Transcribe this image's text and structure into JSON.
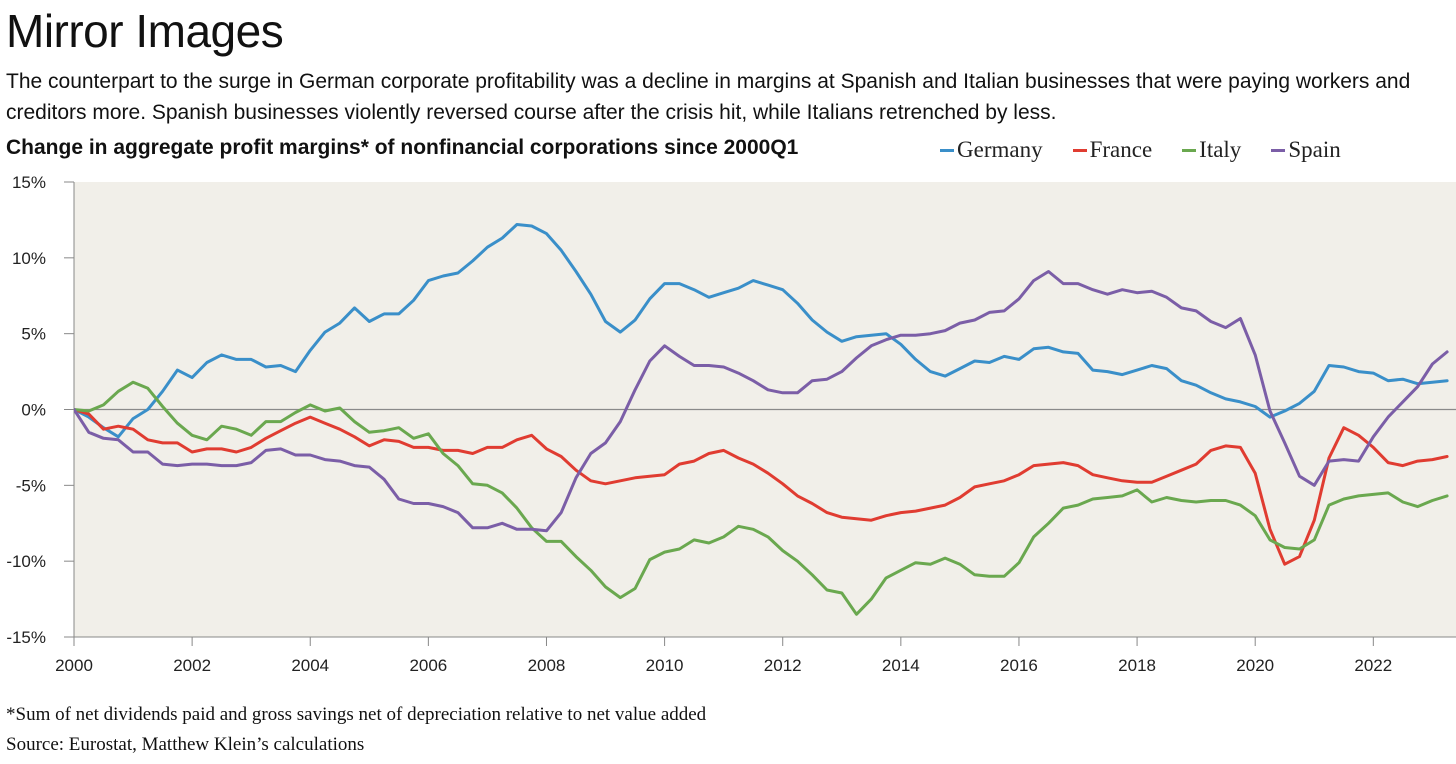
{
  "title": "Mirror Images",
  "subtitle": "The counterpart to the surge in German corporate profitability was a decline in margins at Spanish and Italian businesses that were paying workers and creditors more. Spanish businesses violently reversed course after the crisis hit, while Italians retrenched by less.",
  "footnote": "*Sum of net dividends paid and gross savings net of depreciation relative to net value added",
  "source": "Source: Eurostat, Matthew Klein’s calculations",
  "chart_data": {
    "type": "line",
    "title": "Change in aggregate profit margins* of nonfinancial corporations since 2000Q1",
    "xlabel": "",
    "ylabel": "",
    "xlim": [
      2000,
      2023.4
    ],
    "ylim": [
      -15,
      15
    ],
    "x_ticks": [
      2000,
      2002,
      2004,
      2006,
      2008,
      2010,
      2012,
      2014,
      2016,
      2018,
      2020,
      2022
    ],
    "y_ticks": [
      -15,
      -10,
      -5,
      0,
      5,
      10,
      15
    ],
    "y_tick_labels": [
      "-15%",
      "-10%",
      "-5%",
      "0%",
      "5%",
      "10%",
      "15%"
    ],
    "plot_background": "#f1efe9",
    "grid": false,
    "legend_position": "top-right",
    "series": [
      {
        "name": "Germany",
        "color": "#3a8fc9",
        "x": [
          2000.0,
          2000.25,
          2000.5,
          2000.75,
          2001.0,
          2001.25,
          2001.5,
          2001.75,
          2002.0,
          2002.25,
          2002.5,
          2002.75,
          2003.0,
          2003.25,
          2003.5,
          2003.75,
          2004.0,
          2004.25,
          2004.5,
          2004.75,
          2005.0,
          2005.25,
          2005.5,
          2005.75,
          2006.0,
          2006.25,
          2006.5,
          2006.75,
          2007.0,
          2007.25,
          2007.5,
          2007.75,
          2008.0,
          2008.25,
          2008.5,
          2008.75,
          2009.0,
          2009.25,
          2009.5,
          2009.75,
          2010.0,
          2010.25,
          2010.5,
          2010.75,
          2011.0,
          2011.25,
          2011.5,
          2011.75,
          2012.0,
          2012.25,
          2012.5,
          2012.75,
          2013.0,
          2013.25,
          2013.5,
          2013.75,
          2014.0,
          2014.25,
          2014.5,
          2014.75,
          2015.0,
          2015.25,
          2015.5,
          2015.75,
          2016.0,
          2016.25,
          2016.5,
          2016.75,
          2017.0,
          2017.25,
          2017.5,
          2017.75,
          2018.0,
          2018.25,
          2018.5,
          2018.75,
          2019.0,
          2019.25,
          2019.5,
          2019.75,
          2020.0,
          2020.25,
          2020.5,
          2020.75,
          2021.0,
          2021.25,
          2021.5,
          2021.75,
          2022.0,
          2022.25,
          2022.5,
          2022.75,
          2023.0,
          2023.25
        ],
        "values": [
          0.0,
          -0.5,
          -1.2,
          -1.8,
          -0.6,
          0.0,
          1.2,
          2.6,
          2.1,
          3.1,
          3.6,
          3.3,
          3.3,
          2.8,
          2.9,
          2.5,
          3.9,
          5.1,
          5.7,
          6.7,
          5.8,
          6.3,
          6.3,
          7.2,
          8.5,
          8.8,
          9.0,
          9.8,
          10.7,
          11.3,
          12.2,
          12.1,
          11.6,
          10.5,
          9.1,
          7.6,
          5.8,
          5.1,
          5.9,
          7.3,
          8.3,
          8.3,
          7.9,
          7.4,
          7.7,
          8.0,
          8.5,
          8.2,
          7.9,
          7.0,
          5.9,
          5.1,
          4.5,
          4.8,
          4.9,
          5.0,
          4.3,
          3.3,
          2.5,
          2.2,
          2.7,
          3.2,
          3.1,
          3.5,
          3.3,
          4.0,
          4.1,
          3.8,
          3.7,
          2.6,
          2.5,
          2.3,
          2.6,
          2.9,
          2.7,
          1.9,
          1.6,
          1.1,
          0.7,
          0.5,
          0.2,
          -0.5,
          -0.1,
          0.4,
          1.2,
          2.9,
          2.8,
          2.5,
          2.4,
          1.9,
          2.0,
          1.7,
          1.8,
          1.9
        ]
      },
      {
        "name": "France",
        "color": "#e03c31",
        "x": [
          2000.0,
          2000.25,
          2000.5,
          2000.75,
          2001.0,
          2001.25,
          2001.5,
          2001.75,
          2002.0,
          2002.25,
          2002.5,
          2002.75,
          2003.0,
          2003.25,
          2003.5,
          2003.75,
          2004.0,
          2004.25,
          2004.5,
          2004.75,
          2005.0,
          2005.25,
          2005.5,
          2005.75,
          2006.0,
          2006.25,
          2006.5,
          2006.75,
          2007.0,
          2007.25,
          2007.5,
          2007.75,
          2008.0,
          2008.25,
          2008.5,
          2008.75,
          2009.0,
          2009.25,
          2009.5,
          2009.75,
          2010.0,
          2010.25,
          2010.5,
          2010.75,
          2011.0,
          2011.25,
          2011.5,
          2011.75,
          2012.0,
          2012.25,
          2012.5,
          2012.75,
          2013.0,
          2013.25,
          2013.5,
          2013.75,
          2014.0,
          2014.25,
          2014.5,
          2014.75,
          2015.0,
          2015.25,
          2015.5,
          2015.75,
          2016.0,
          2016.25,
          2016.5,
          2016.75,
          2017.0,
          2017.25,
          2017.5,
          2017.75,
          2018.0,
          2018.25,
          2018.5,
          2018.75,
          2019.0,
          2019.25,
          2019.5,
          2019.75,
          2020.0,
          2020.25,
          2020.5,
          2020.75,
          2021.0,
          2021.25,
          2021.5,
          2021.75,
          2022.0,
          2022.25,
          2022.5,
          2022.75,
          2023.0,
          2023.25
        ],
        "values": [
          0.0,
          -0.3,
          -1.3,
          -1.1,
          -1.3,
          -2.0,
          -2.2,
          -2.2,
          -2.8,
          -2.6,
          -2.6,
          -2.8,
          -2.5,
          -1.9,
          -1.4,
          -0.9,
          -0.5,
          -0.9,
          -1.3,
          -1.8,
          -2.4,
          -2.0,
          -2.1,
          -2.5,
          -2.5,
          -2.7,
          -2.7,
          -2.9,
          -2.5,
          -2.5,
          -2.0,
          -1.7,
          -2.6,
          -3.1,
          -4.0,
          -4.7,
          -4.9,
          -4.7,
          -4.5,
          -4.4,
          -4.3,
          -3.6,
          -3.4,
          -2.9,
          -2.7,
          -3.2,
          -3.6,
          -4.2,
          -4.9,
          -5.7,
          -6.2,
          -6.8,
          -7.1,
          -7.2,
          -7.3,
          -7.0,
          -6.8,
          -6.7,
          -6.5,
          -6.3,
          -5.8,
          -5.1,
          -4.9,
          -4.7,
          -4.3,
          -3.7,
          -3.6,
          -3.5,
          -3.7,
          -4.3,
          -4.5,
          -4.7,
          -4.8,
          -4.8,
          -4.4,
          -4.0,
          -3.6,
          -2.7,
          -2.4,
          -2.5,
          -4.2,
          -7.9,
          -10.2,
          -9.7,
          -7.3,
          -3.2,
          -1.2,
          -1.7,
          -2.5,
          -3.5,
          -3.7,
          -3.4,
          -3.3,
          -3.1
        ]
      },
      {
        "name": "Italy",
        "color": "#6aa84f",
        "x": [
          2000.0,
          2000.25,
          2000.5,
          2000.75,
          2001.0,
          2001.25,
          2001.5,
          2001.75,
          2002.0,
          2002.25,
          2002.5,
          2002.75,
          2003.0,
          2003.25,
          2003.5,
          2003.75,
          2004.0,
          2004.25,
          2004.5,
          2004.75,
          2005.0,
          2005.25,
          2005.5,
          2005.75,
          2006.0,
          2006.25,
          2006.5,
          2006.75,
          2007.0,
          2007.25,
          2007.5,
          2007.75,
          2008.0,
          2008.25,
          2008.5,
          2008.75,
          2009.0,
          2009.25,
          2009.5,
          2009.75,
          2010.0,
          2010.25,
          2010.5,
          2010.75,
          2011.0,
          2011.25,
          2011.5,
          2011.75,
          2012.0,
          2012.25,
          2012.5,
          2012.75,
          2013.0,
          2013.25,
          2013.5,
          2013.75,
          2014.0,
          2014.25,
          2014.5,
          2014.75,
          2015.0,
          2015.25,
          2015.5,
          2015.75,
          2016.0,
          2016.25,
          2016.5,
          2016.75,
          2017.0,
          2017.25,
          2017.5,
          2017.75,
          2018.0,
          2018.25,
          2018.5,
          2018.75,
          2019.0,
          2019.25,
          2019.5,
          2019.75,
          2020.0,
          2020.25,
          2020.5,
          2020.75,
          2021.0,
          2021.25,
          2021.5,
          2021.75,
          2022.0,
          2022.25,
          2022.5,
          2022.75,
          2023.0,
          2023.25
        ],
        "values": [
          0.0,
          -0.1,
          0.3,
          1.2,
          1.8,
          1.4,
          0.2,
          -0.9,
          -1.7,
          -2.0,
          -1.1,
          -1.3,
          -1.7,
          -0.8,
          -0.8,
          -0.2,
          0.3,
          -0.1,
          0.1,
          -0.8,
          -1.5,
          -1.4,
          -1.2,
          -1.9,
          -1.6,
          -2.9,
          -3.7,
          -4.9,
          -5.0,
          -5.5,
          -6.5,
          -7.8,
          -8.7,
          -8.7,
          -9.7,
          -10.6,
          -11.7,
          -12.4,
          -11.8,
          -9.9,
          -9.4,
          -9.2,
          -8.6,
          -8.8,
          -8.4,
          -7.7,
          -7.9,
          -8.4,
          -9.3,
          -10.0,
          -10.9,
          -11.9,
          -12.1,
          -13.5,
          -12.5,
          -11.1,
          -10.6,
          -10.1,
          -10.2,
          -9.8,
          -10.2,
          -10.9,
          -11.0,
          -11.0,
          -10.1,
          -8.4,
          -7.5,
          -6.5,
          -6.3,
          -5.9,
          -5.8,
          -5.7,
          -5.3,
          -6.1,
          -5.8,
          -6.0,
          -6.1,
          -6.0,
          -6.0,
          -6.3,
          -7.0,
          -8.6,
          -9.1,
          -9.2,
          -8.6,
          -6.3,
          -5.9,
          -5.7,
          -5.6,
          -5.5,
          -6.1,
          -6.4,
          -6.0,
          -5.7
        ]
      },
      {
        "name": "Spain",
        "color": "#7b5ea7",
        "x": [
          2000.0,
          2000.25,
          2000.5,
          2000.75,
          2001.0,
          2001.25,
          2001.5,
          2001.75,
          2002.0,
          2002.25,
          2002.5,
          2002.75,
          2003.0,
          2003.25,
          2003.5,
          2003.75,
          2004.0,
          2004.25,
          2004.5,
          2004.75,
          2005.0,
          2005.25,
          2005.5,
          2005.75,
          2006.0,
          2006.25,
          2006.5,
          2006.75,
          2007.0,
          2007.25,
          2007.5,
          2007.75,
          2008.0,
          2008.25,
          2008.5,
          2008.75,
          2009.0,
          2009.25,
          2009.5,
          2009.75,
          2010.0,
          2010.25,
          2010.5,
          2010.75,
          2011.0,
          2011.25,
          2011.5,
          2011.75,
          2012.0,
          2012.25,
          2012.5,
          2012.75,
          2013.0,
          2013.25,
          2013.5,
          2013.75,
          2014.0,
          2014.25,
          2014.5,
          2014.75,
          2015.0,
          2015.25,
          2015.5,
          2015.75,
          2016.0,
          2016.25,
          2016.5,
          2016.75,
          2017.0,
          2017.25,
          2017.5,
          2017.75,
          2018.0,
          2018.25,
          2018.5,
          2018.75,
          2019.0,
          2019.25,
          2019.5,
          2019.75,
          2020.0,
          2020.25,
          2020.5,
          2020.75,
          2021.0,
          2021.25,
          2021.5,
          2021.75,
          2022.0,
          2022.25,
          2022.5,
          2022.75,
          2023.0,
          2023.25
        ],
        "values": [
          0.0,
          -1.5,
          -1.9,
          -2.0,
          -2.8,
          -2.8,
          -3.6,
          -3.7,
          -3.6,
          -3.6,
          -3.7,
          -3.7,
          -3.5,
          -2.7,
          -2.6,
          -3.0,
          -3.0,
          -3.3,
          -3.4,
          -3.7,
          -3.8,
          -4.6,
          -5.9,
          -6.2,
          -6.2,
          -6.4,
          -6.8,
          -7.8,
          -7.8,
          -7.5,
          -7.9,
          -7.9,
          -8.0,
          -6.8,
          -4.5,
          -2.9,
          -2.2,
          -0.8,
          1.3,
          3.2,
          4.2,
          3.5,
          2.9,
          2.9,
          2.8,
          2.4,
          1.9,
          1.3,
          1.1,
          1.1,
          1.9,
          2.0,
          2.5,
          3.4,
          4.2,
          4.6,
          4.9,
          4.9,
          5.0,
          5.2,
          5.7,
          5.9,
          6.4,
          6.5,
          7.3,
          8.5,
          9.1,
          8.3,
          8.3,
          7.9,
          7.6,
          7.9,
          7.7,
          7.8,
          7.4,
          6.7,
          6.5,
          5.8,
          5.4,
          6.0,
          3.6,
          -0.1,
          -2.2,
          -4.4,
          -5.0,
          -3.4,
          -3.3,
          -3.4,
          -1.8,
          -0.5,
          0.5,
          1.5,
          3.0,
          3.8
        ]
      }
    ]
  }
}
